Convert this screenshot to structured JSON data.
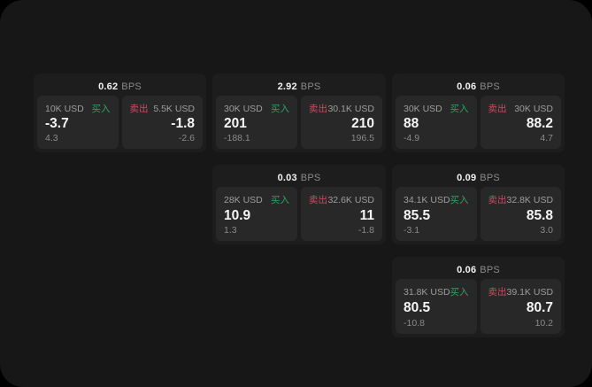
{
  "labels": {
    "buy": "买入",
    "sell": "卖出",
    "bps_unit": "BPS"
  },
  "colors": {
    "buy_green": "#2fa263",
    "sell_red": "#ce4a60",
    "window_bg": "#171717",
    "card_bg": "#1d1d1d",
    "panel_bg": "#282828"
  },
  "cards": [
    {
      "row": 0,
      "col": 0,
      "bps": "0.62",
      "buy": {
        "size": "10K USD",
        "price": "-3.7",
        "delta": "4.3"
      },
      "sell": {
        "size": "5.5K USD",
        "price": "-1.8",
        "delta": "-2.6"
      }
    },
    {
      "row": 0,
      "col": 1,
      "bps": "2.92",
      "buy": {
        "size": "30K USD",
        "price": "201",
        "delta": "-188.1"
      },
      "sell": {
        "size": "30.1K USD",
        "price": "210",
        "delta": "196.5"
      }
    },
    {
      "row": 0,
      "col": 2,
      "bps": "0.06",
      "buy": {
        "size": "30K USD",
        "price": "88",
        "delta": "-4.9"
      },
      "sell": {
        "size": "30K USD",
        "price": "88.2",
        "delta": "4.7"
      }
    },
    {
      "row": 1,
      "col": 1,
      "bps": "0.03",
      "buy": {
        "size": "28K USD",
        "price": "10.9",
        "delta": "1.3"
      },
      "sell": {
        "size": "32.6K USD",
        "price": "11",
        "delta": "-1.8"
      }
    },
    {
      "row": 1,
      "col": 2,
      "bps": "0.09",
      "buy": {
        "size": "34.1K USD",
        "price": "85.5",
        "delta": "-3.1"
      },
      "sell": {
        "size": "32.8K USD",
        "price": "85.8",
        "delta": "3.0"
      }
    },
    {
      "row": 2,
      "col": 2,
      "bps": "0.06",
      "buy": {
        "size": "31.8K USD",
        "price": "80.5",
        "delta": "-10.8"
      },
      "sell": {
        "size": "39.1K USD",
        "price": "80.7",
        "delta": "10.2"
      }
    }
  ]
}
